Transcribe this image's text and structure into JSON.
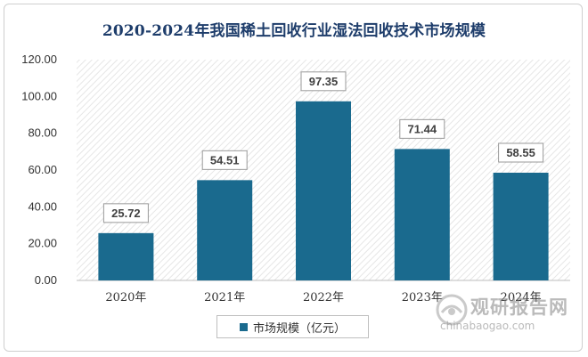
{
  "chart_data": {
    "type": "bar",
    "title": "2020-2024年我国稀土回收行业湿法回收技术市场规模",
    "categories": [
      "2020年",
      "2021年",
      "2022年",
      "2023年",
      "2024年"
    ],
    "series": [
      {
        "name": "市场规模（亿元）",
        "values": [
          25.72,
          54.51,
          97.35,
          71.44,
          58.55
        ]
      }
    ],
    "data_labels": [
      "25.72",
      "54.51",
      "97.35",
      "71.44",
      "58.55"
    ],
    "yticks": [
      "0.00",
      "20.00",
      "40.00",
      "60.00",
      "80.00",
      "100.00",
      "120.00"
    ],
    "ylim": [
      0,
      120
    ],
    "legend_position": "bottom",
    "bar_color": "#1a6a8e",
    "background": "diagonal-hatch"
  },
  "watermark": {
    "text": "观研报告网",
    "url": "chinabaogao.com"
  }
}
